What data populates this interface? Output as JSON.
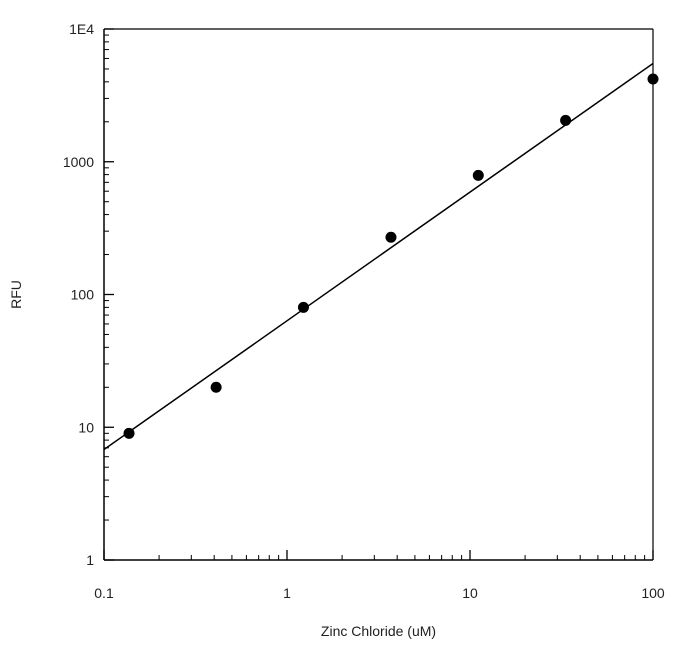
{
  "chart_data": {
    "type": "scatter",
    "title": "",
    "xlabel": "Zinc Chloride (uM)",
    "ylabel": "RFU",
    "x_scale": "log",
    "y_scale": "log",
    "xlim": [
      0.1,
      100
    ],
    "ylim": [
      1,
      10000
    ],
    "x_ticks": [
      {
        "value": 0.1,
        "label": "0.1"
      },
      {
        "value": 1,
        "label": "1"
      },
      {
        "value": 10,
        "label": "10"
      },
      {
        "value": 100,
        "label": "100"
      }
    ],
    "y_ticks": [
      {
        "value": 1,
        "label": "1"
      },
      {
        "value": 10,
        "label": "10"
      },
      {
        "value": 100,
        "label": "100"
      },
      {
        "value": 1000,
        "label": "1000"
      },
      {
        "value": 10000,
        "label": "1E4"
      }
    ],
    "grid": false,
    "series": [
      {
        "points": [
          {
            "x": 0.137,
            "y": 9
          },
          {
            "x": 0.41,
            "y": 20
          },
          {
            "x": 1.23,
            "y": 80
          },
          {
            "x": 3.7,
            "y": 270
          },
          {
            "x": 11.1,
            "y": 790
          },
          {
            "x": 33.3,
            "y": 2050
          },
          {
            "x": 100,
            "y": 4200
          }
        ]
      }
    ],
    "fit_line": {
      "x": [
        0.1,
        100
      ],
      "y": [
        6.8,
        5500
      ]
    },
    "colors": {
      "points": "#000000",
      "line": "#000000",
      "axis": "#000000"
    }
  }
}
